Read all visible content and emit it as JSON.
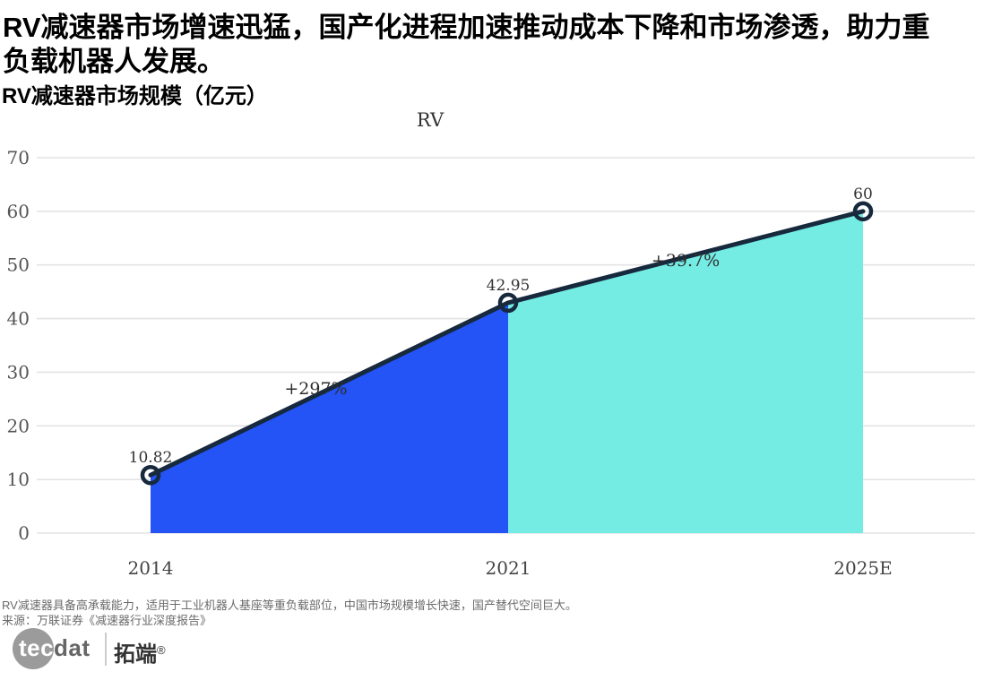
{
  "page": {
    "main_title": "RV减速器市场增速迅猛，国产化进程加速推动成本下降和市场渗透，助力重负载机器人发展。",
    "subtitle": "RV减速器市场规模（亿元）"
  },
  "chart_data": {
    "type": "area",
    "title": "RV",
    "categories": [
      "2014",
      "2021",
      "2025E"
    ],
    "values": [
      10.82,
      42.95,
      60
    ],
    "point_labels": [
      "10.82",
      "42.95",
      "60"
    ],
    "segment_annotations": [
      "+297%",
      "+39.7%"
    ],
    "segment_colors": [
      "#2453f6",
      "#74ece3"
    ],
    "line_color": "#16293d",
    "grid_color": "#e3e3e3",
    "tick_label_color": "#555555",
    "category_label_color": "#444444",
    "value_label_color": "#333333",
    "annotation_color": "#2d2d2d",
    "xlabel": "",
    "ylabel": "",
    "ylim": [
      0,
      70
    ],
    "yticks": [
      0,
      10,
      20,
      30,
      40,
      50,
      60,
      70
    ],
    "grid": true,
    "legend": "none"
  },
  "footer": {
    "note": "RV减速器具备高承载能力，适用于工业机器人基座等重负载部位，中国市场规模增长快速，国产替代空间巨大。",
    "source": "来源：万联证券《减速器行业深度报告》",
    "logo_tec": "tec",
    "logo_dat": "dat",
    "logo_brand": "拓端",
    "logo_reg": "®"
  }
}
